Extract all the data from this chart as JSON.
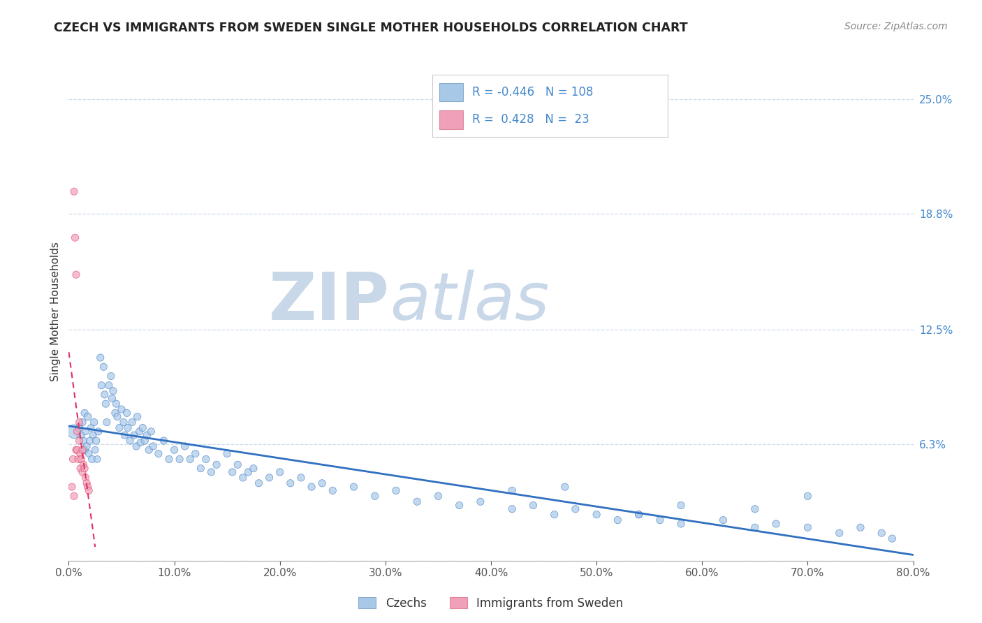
{
  "title": "CZECH VS IMMIGRANTS FROM SWEDEN SINGLE MOTHER HOUSEHOLDS CORRELATION CHART",
  "source": "Source: ZipAtlas.com",
  "ylabel": "Single Mother Households",
  "r_czech": -0.446,
  "n_czech": 108,
  "r_sweden": 0.428,
  "n_sweden": 23,
  "xlim": [
    0.0,
    0.8
  ],
  "ylim": [
    0.0,
    0.27
  ],
  "yticks_right": [
    0.0,
    0.063,
    0.125,
    0.188,
    0.25
  ],
  "ytick_labels_right": [
    "",
    "6.3%",
    "12.5%",
    "18.8%",
    "25.0%"
  ],
  "xtick_labels": [
    "0.0%",
    "10.0%",
    "20.0%",
    "30.0%",
    "40.0%",
    "50.0%",
    "60.0%",
    "70.0%",
    "80.0%"
  ],
  "xticks": [
    0.0,
    0.1,
    0.2,
    0.3,
    0.4,
    0.5,
    0.6,
    0.7,
    0.8
  ],
  "color_czech": "#a8c8e8",
  "color_sweden": "#f0a0b8",
  "color_trendline_czech": "#3070c0",
  "color_trendline_sweden": "#e03060",
  "watermark_zip_color": "#c8d8e8",
  "watermark_atlas_color": "#c8d8e8",
  "legend_R_color": "#4488cc",
  "legend_box_color_czech": "#a8c8e8",
  "legend_box_color_sweden": "#f0a0b8",
  "grid_color": "#c8d8e8",
  "czech_x": [
    0.005,
    0.01,
    0.012,
    0.013,
    0.014,
    0.015,
    0.015,
    0.016,
    0.017,
    0.018,
    0.019,
    0.02,
    0.021,
    0.022,
    0.023,
    0.024,
    0.025,
    0.026,
    0.027,
    0.028,
    0.03,
    0.031,
    0.033,
    0.034,
    0.035,
    0.036,
    0.038,
    0.04,
    0.041,
    0.042,
    0.044,
    0.045,
    0.046,
    0.048,
    0.05,
    0.052,
    0.053,
    0.055,
    0.056,
    0.058,
    0.06,
    0.062,
    0.064,
    0.065,
    0.067,
    0.068,
    0.07,
    0.072,
    0.074,
    0.076,
    0.078,
    0.08,
    0.085,
    0.09,
    0.095,
    0.1,
    0.105,
    0.11,
    0.115,
    0.12,
    0.125,
    0.13,
    0.135,
    0.14,
    0.15,
    0.155,
    0.16,
    0.165,
    0.17,
    0.175,
    0.18,
    0.19,
    0.2,
    0.21,
    0.22,
    0.23,
    0.24,
    0.25,
    0.27,
    0.29,
    0.31,
    0.33,
    0.35,
    0.37,
    0.39,
    0.42,
    0.44,
    0.46,
    0.48,
    0.5,
    0.52,
    0.54,
    0.56,
    0.58,
    0.62,
    0.65,
    0.67,
    0.7,
    0.73,
    0.75,
    0.77,
    0.78,
    0.7,
    0.65,
    0.58,
    0.54,
    0.47,
    0.42
  ],
  "czech_y": [
    0.07,
    0.072,
    0.068,
    0.075,
    0.065,
    0.08,
    0.06,
    0.07,
    0.062,
    0.078,
    0.058,
    0.065,
    0.072,
    0.055,
    0.068,
    0.075,
    0.06,
    0.065,
    0.055,
    0.07,
    0.11,
    0.095,
    0.105,
    0.09,
    0.085,
    0.075,
    0.095,
    0.1,
    0.088,
    0.092,
    0.08,
    0.085,
    0.078,
    0.072,
    0.082,
    0.075,
    0.068,
    0.08,
    0.072,
    0.065,
    0.075,
    0.068,
    0.062,
    0.078,
    0.07,
    0.064,
    0.072,
    0.065,
    0.068,
    0.06,
    0.07,
    0.062,
    0.058,
    0.065,
    0.055,
    0.06,
    0.055,
    0.062,
    0.055,
    0.058,
    0.05,
    0.055,
    0.048,
    0.052,
    0.058,
    0.048,
    0.052,
    0.045,
    0.048,
    0.05,
    0.042,
    0.045,
    0.048,
    0.042,
    0.045,
    0.04,
    0.042,
    0.038,
    0.04,
    0.035,
    0.038,
    0.032,
    0.035,
    0.03,
    0.032,
    0.028,
    0.03,
    0.025,
    0.028,
    0.025,
    0.022,
    0.025,
    0.022,
    0.02,
    0.022,
    0.018,
    0.02,
    0.018,
    0.015,
    0.018,
    0.015,
    0.012,
    0.035,
    0.028,
    0.03,
    0.025,
    0.04,
    0.038
  ],
  "czech_sizes": [
    200,
    60,
    50,
    55,
    50,
    55,
    60,
    50,
    55,
    60,
    50,
    55,
    50,
    55,
    50,
    55,
    50,
    55,
    50,
    55,
    55,
    55,
    55,
    55,
    55,
    55,
    55,
    55,
    55,
    55,
    55,
    55,
    55,
    55,
    55,
    55,
    55,
    55,
    55,
    55,
    55,
    55,
    55,
    55,
    55,
    55,
    55,
    55,
    55,
    55,
    55,
    55,
    55,
    55,
    55,
    55,
    55,
    55,
    55,
    55,
    55,
    55,
    55,
    55,
    55,
    55,
    55,
    55,
    55,
    55,
    55,
    55,
    55,
    55,
    55,
    55,
    55,
    55,
    55,
    55,
    55,
    55,
    55,
    55,
    55,
    55,
    55,
    55,
    55,
    55,
    55,
    55,
    55,
    55,
    55,
    55,
    55,
    55,
    55,
    55,
    55,
    55,
    55,
    55,
    55,
    55,
    55,
    55
  ],
  "sweden_x": [
    0.003,
    0.004,
    0.005,
    0.005,
    0.006,
    0.007,
    0.007,
    0.008,
    0.008,
    0.009,
    0.01,
    0.01,
    0.011,
    0.011,
    0.012,
    0.013,
    0.013,
    0.014,
    0.015,
    0.016,
    0.017,
    0.018,
    0.019
  ],
  "sweden_y": [
    0.04,
    0.055,
    0.2,
    0.035,
    0.175,
    0.155,
    0.06,
    0.07,
    0.06,
    0.055,
    0.075,
    0.065,
    0.058,
    0.05,
    0.055,
    0.06,
    0.048,
    0.052,
    0.05,
    0.045,
    0.042,
    0.04,
    0.038
  ],
  "sweden_sizes": [
    55,
    55,
    55,
    55,
    55,
    55,
    55,
    55,
    55,
    55,
    55,
    55,
    55,
    55,
    55,
    55,
    55,
    55,
    55,
    55,
    55,
    55,
    55
  ],
  "sweden_trendline_x": [
    0.0,
    0.022
  ],
  "czech_trendline_x": [
    0.0,
    0.8
  ]
}
